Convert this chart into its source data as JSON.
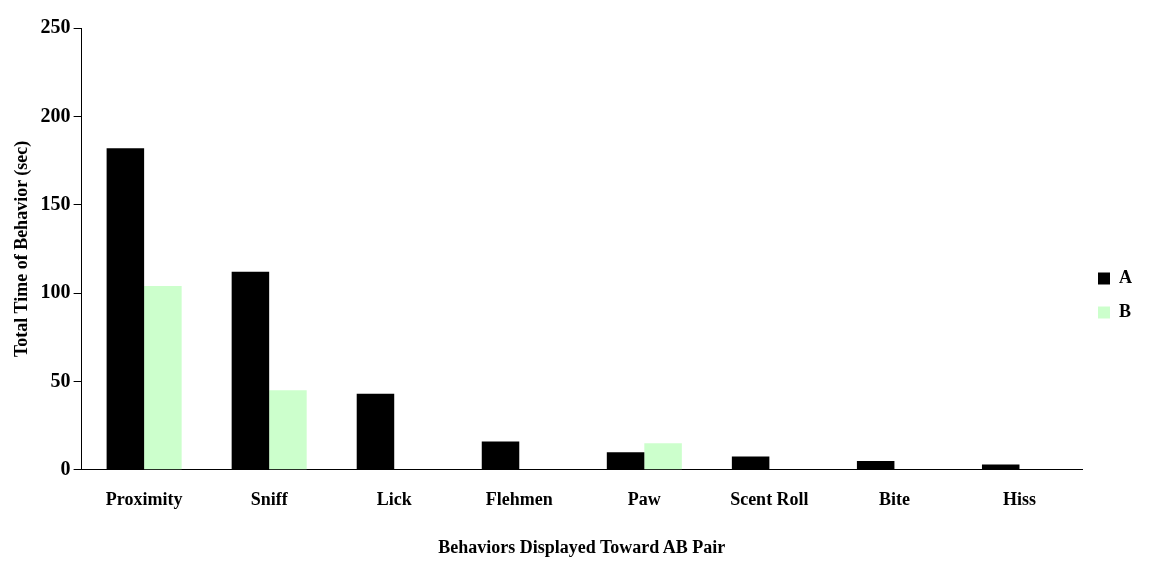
{
  "chart_data": {
    "type": "bar",
    "xlabel": "Behaviors Displayed Toward AB Pair",
    "ylabel": "Total Time of Behavior (sec)",
    "categories": [
      "Proximity",
      "Sniff",
      "Lick",
      "Flehmen",
      "Paw",
      "Scent Roll",
      "Bite",
      "Hiss"
    ],
    "series": [
      {
        "name": "A",
        "color": "#000000",
        "values": [
          182,
          112,
          43,
          16,
          10,
          7.5,
          5,
          3
        ]
      },
      {
        "name": "B",
        "color": "#ccffcc",
        "values": [
          104,
          45,
          null,
          null,
          15,
          null,
          null,
          null
        ]
      }
    ],
    "ylim": [
      0,
      250
    ],
    "yticks": [
      0,
      50,
      100,
      150,
      200,
      250
    ],
    "grid": false,
    "legend": "right"
  }
}
